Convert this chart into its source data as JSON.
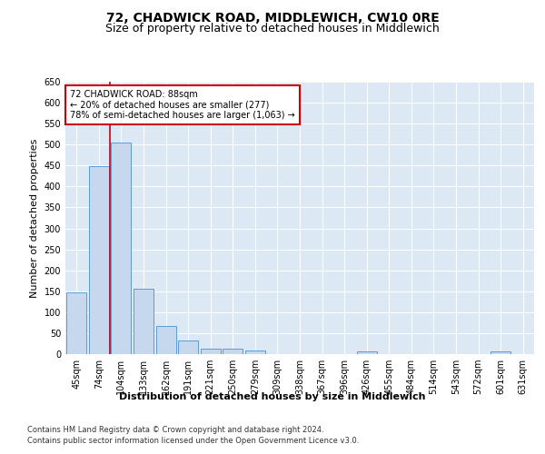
{
  "title": "72, CHADWICK ROAD, MIDDLEWICH, CW10 0RE",
  "subtitle": "Size of property relative to detached houses in Middlewich",
  "xlabel": "Distribution of detached houses by size in Middlewich",
  "ylabel": "Number of detached properties",
  "categories": [
    "45sqm",
    "74sqm",
    "104sqm",
    "133sqm",
    "162sqm",
    "191sqm",
    "221sqm",
    "250sqm",
    "279sqm",
    "309sqm",
    "338sqm",
    "367sqm",
    "396sqm",
    "426sqm",
    "455sqm",
    "484sqm",
    "514sqm",
    "543sqm",
    "572sqm",
    "601sqm",
    "631sqm"
  ],
  "values": [
    147,
    448,
    505,
    157,
    67,
    33,
    14,
    14,
    8,
    0,
    0,
    0,
    0,
    7,
    0,
    0,
    0,
    0,
    0,
    7,
    0
  ],
  "bar_color": "#c5d8ed",
  "bar_edge_color": "#5b9bd5",
  "annotation_text": "72 CHADWICK ROAD: 88sqm\n← 20% of detached houses are smaller (277)\n78% of semi-detached houses are larger (1,063) →",
  "annotation_box_color": "#ffffff",
  "annotation_box_edge_color": "#cc0000",
  "vline_color": "#cc0000",
  "vline_x_index": 1.5,
  "ylim": [
    0,
    650
  ],
  "yticks": [
    0,
    50,
    100,
    150,
    200,
    250,
    300,
    350,
    400,
    450,
    500,
    550,
    600,
    650
  ],
  "plot_bg_color": "#dce9f5",
  "footer1": "Contains HM Land Registry data © Crown copyright and database right 2024.",
  "footer2": "Contains public sector information licensed under the Open Government Licence v3.0.",
  "title_fontsize": 10,
  "subtitle_fontsize": 9,
  "xlabel_fontsize": 8,
  "ylabel_fontsize": 8,
  "tick_fontsize": 7,
  "footer_fontsize": 6
}
